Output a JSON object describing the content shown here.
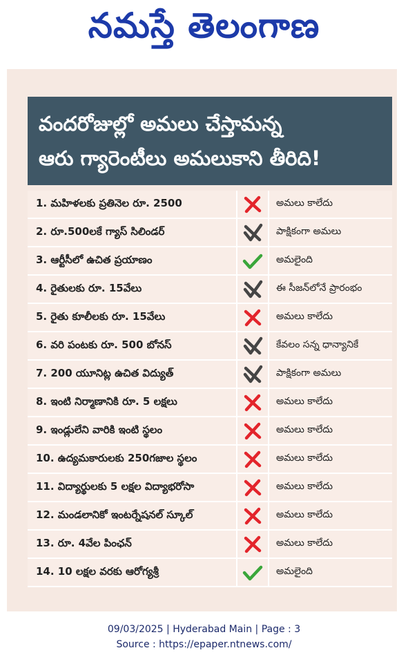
{
  "masthead": "నమస్తే తెలంగాణ",
  "headline": {
    "lines": [
      "వందరోజుల్లో అమలు చేస్తామన్న",
      "ఆరు గ్యారెంటీలు అమలుకాని తీరిది!"
    ]
  },
  "table": {
    "rows": [
      {
        "item": "1. మహిళలకు ప్రతినెల రూ. 2500",
        "icon": "cross",
        "status": "అమలు కాలేదు"
      },
      {
        "item": "2. రూ.500లకే గ్యాస్ సిలిండర్",
        "icon": "partial",
        "status": "పాక్షికంగా అమలు"
      },
      {
        "item": "3. ఆర్టీసీలో ఉచిత ప్రయాణం",
        "icon": "check",
        "status": "అమలైంది"
      },
      {
        "item": "4. రైతులకు రూ. 15వేలు",
        "icon": "partial",
        "status": "ఈ సీజన్‌లోనే ప్రారంభం"
      },
      {
        "item": "5. రైతు కూలీలకు రూ. 15వేలు",
        "icon": "cross",
        "status": "అమలు కాలేదు"
      },
      {
        "item": "6. వరి పంటకు రూ. 500 బోనస్",
        "icon": "partial",
        "status": "కేవలం సన్న ధాన్యానికే"
      },
      {
        "item": "7. 200 యూనిట్ల ఉచిత విద్యుత్",
        "icon": "partial",
        "status": "పాక్షికంగా అమలు"
      },
      {
        "item": "8. ఇంటి నిర్మాణానికి రూ. 5 లక్షలు",
        "icon": "cross",
        "status": "అమలు కాలేదు"
      },
      {
        "item": "9. ఇండ్లులేని వారికి ఇంటి స్థలం",
        "icon": "cross",
        "status": "అమలు కాలేదు"
      },
      {
        "item": "10. ఉద్యమకారులకు 250గజాల స్థలం",
        "icon": "cross",
        "status": "అమలు కాలేదు"
      },
      {
        "item": "11. విద్యార్థులకు 5 లక్షల విద్యాభరోసా",
        "icon": "cross",
        "status": "అమలు కాలేదు"
      },
      {
        "item": "12. మండలానికో ఇంటర్నేషనల్ స్కూల్",
        "icon": "cross",
        "status": "అమలు కాలేదు"
      },
      {
        "item": "13. రూ. 4వేల పింఛన్",
        "icon": "cross",
        "status": "అమలు కాలేదు"
      },
      {
        "item": "14. 10 లక్షల వరకు ఆరోగ్యశ్రీ",
        "icon": "check",
        "status": "అమలైంది"
      }
    ]
  },
  "footer": {
    "lines": [
      "09/03/2025 | Hyderabad Main | Page : 3",
      "Source : https://epaper.ntnews.com/"
    ]
  }
}
